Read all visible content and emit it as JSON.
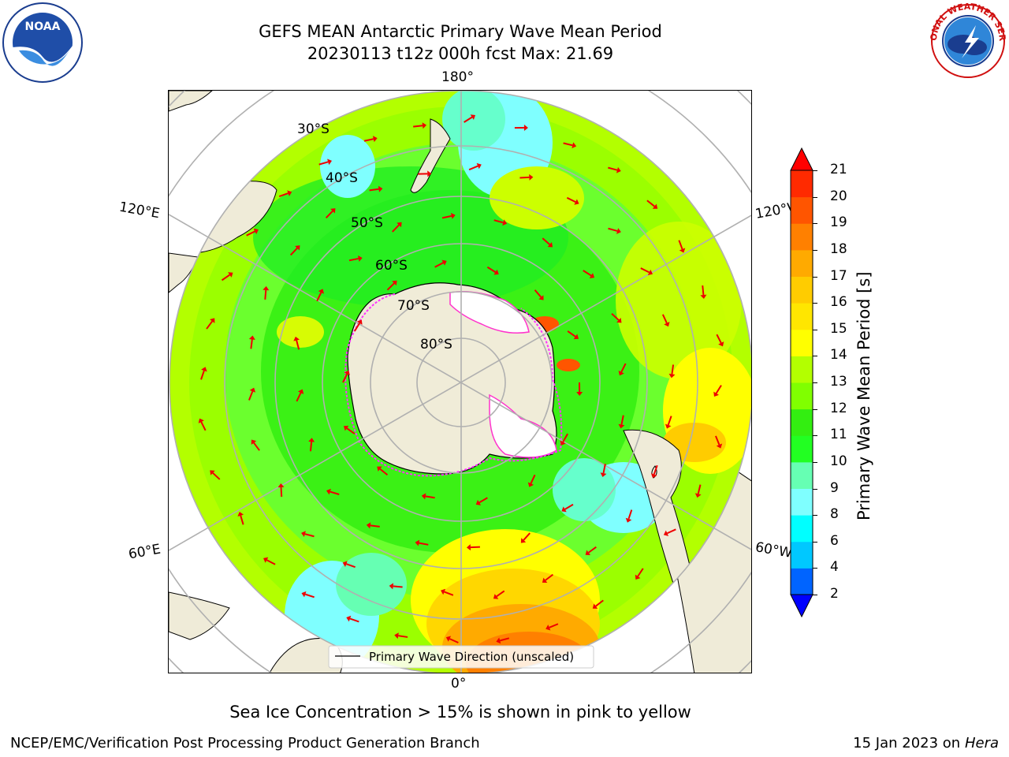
{
  "title": {
    "line1": "GEFS MEAN Antarctic Primary Wave Mean Period",
    "line2": "20230113 t12z 000h fcst   Max: 21.69"
  },
  "map": {
    "projection": "south-polar-stereographic",
    "lon_labels": {
      "top": "180°",
      "bottom": "0°",
      "upper_left": "120°E",
      "upper_right": "120°W",
      "lower_left": "60°E",
      "lower_right": "60°W"
    },
    "lat_labels": [
      "30°S",
      "40°S",
      "50°S",
      "60°S",
      "70°S",
      "80°S"
    ],
    "legend": "Primary Wave Direction (unscaled)"
  },
  "colorbar": {
    "label": "Primary Wave Mean Period [s]",
    "ticks": [
      "2",
      "4",
      "6",
      "8",
      "9",
      "10",
      "11",
      "12",
      "13",
      "14",
      "15",
      "16",
      "17",
      "18",
      "19",
      "20",
      "21"
    ],
    "colors": [
      "#0000ff",
      "#0064ff",
      "#00c8ff",
      "#00ffff",
      "#7fffff",
      "#66ffb3",
      "#22ff22",
      "#33ee11",
      "#80ff00",
      "#b3ff00",
      "#ffff00",
      "#ffe600",
      "#ffcc00",
      "#ffaa00",
      "#ff8000",
      "#ff5500",
      "#ff2a00"
    ],
    "under_color": "#0000ff",
    "over_color": "#ff0000"
  },
  "caption": "Sea Ice Concentration > 15% is shown in pink to yellow",
  "footer": {
    "left": "NCEP/EMC/Verification Post Processing Product Generation Branch",
    "right_date": "15 Jan 2023 on",
    "right_host": "Hera"
  },
  "logos": {
    "noaa_text": "NOAA",
    "nws_text": "NATIONAL WEATHER SERVICE"
  }
}
